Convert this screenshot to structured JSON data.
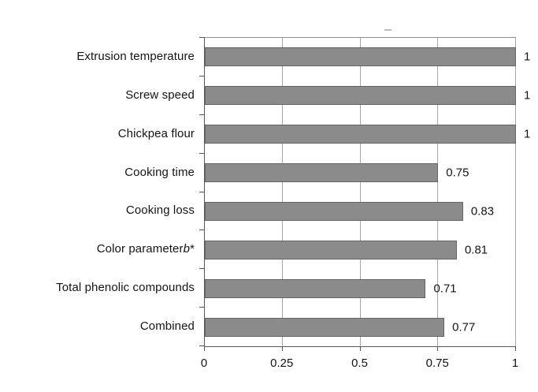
{
  "figure": {
    "background": "#ffffff"
  },
  "chart_data": {
    "type": "bar",
    "orientation": "horizontal",
    "title": "",
    "xlabel": "",
    "ylabel": "",
    "categories": [
      {
        "label": "Extrusion temperature"
      },
      {
        "label": "Screw speed"
      },
      {
        "label": "Chickpea flour"
      },
      {
        "label": "Cooking time"
      },
      {
        "label": "Cooking loss"
      },
      {
        "label": "Color parameter b*",
        "parts": [
          {
            "t": "Color parameter ",
            "i": false
          },
          {
            "t": "b",
            "i": true
          },
          {
            "t": "*",
            "i": false
          }
        ]
      },
      {
        "label": "Total phenolic compounds"
      },
      {
        "label": "Combined"
      }
    ],
    "values": [
      1,
      1,
      1,
      0.75,
      0.83,
      0.81,
      0.71,
      0.77
    ],
    "value_labels": [
      "1",
      "1",
      "1",
      "0.75",
      "0.83",
      "0.81",
      "0.71",
      "0.77"
    ],
    "xlim": [
      0,
      1
    ],
    "xticks": [
      0,
      0.25,
      0.5,
      0.75,
      1
    ],
    "xtick_labels": [
      "0",
      "0.25",
      "0.5",
      "0.75",
      "1"
    ],
    "grid": "vertical-gridlines",
    "legend": "none",
    "bar_color": "#8b8b8b",
    "bar_border_color": "#646464",
    "gridline_color": "#a8a8a8",
    "axis_color": "#595959",
    "text_color": "#151515"
  }
}
